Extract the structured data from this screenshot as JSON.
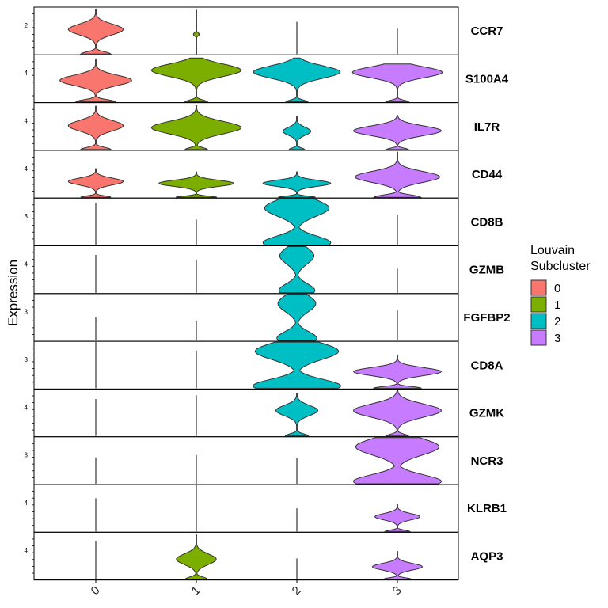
{
  "chart_data": {
    "type": "violin",
    "ylabel": "Expression",
    "categories": [
      "0",
      "1",
      "2",
      "3"
    ],
    "legend": {
      "title_lines": [
        "Louvain",
        "Subcluster"
      ],
      "entries": [
        {
          "label": "0",
          "color": "#F8766D"
        },
        {
          "label": "1",
          "color": "#7CAE00"
        },
        {
          "label": "2",
          "color": "#00BFC4"
        },
        {
          "label": "3",
          "color": "#C77CFF"
        }
      ],
      "placement": "right"
    },
    "panels": [
      {
        "gene": "CCR7",
        "ytick": "2",
        "clusters": [
          {
            "shape": "bulb",
            "width": 0.55,
            "center": 0.55,
            "top": 0.97
          },
          {
            "shape": "spike",
            "width": 0.06,
            "center": 0.45,
            "top": 0.95
          },
          {
            "shape": "line",
            "top": 0.7
          },
          {
            "shape": "line",
            "top": 0.55
          }
        ]
      },
      {
        "gene": "S100A4",
        "ytick": "4",
        "clusters": [
          {
            "shape": "bulb",
            "width": 0.72,
            "center": 0.5,
            "top": 0.93
          },
          {
            "shape": "wide",
            "width": 0.9,
            "center": 0.72,
            "top": 0.95
          },
          {
            "shape": "wide",
            "width": 0.87,
            "center": 0.68,
            "top": 0.95
          },
          {
            "shape": "wide",
            "width": 0.9,
            "center": 0.78,
            "top": 0.82
          }
        ]
      },
      {
        "gene": "IL7R",
        "ytick": "4",
        "clusters": [
          {
            "shape": "bulb",
            "width": 0.55,
            "center": 0.55,
            "top": 0.94
          },
          {
            "shape": "wide",
            "width": 0.9,
            "center": 0.5,
            "top": 0.95
          },
          {
            "shape": "bulb",
            "width": 0.28,
            "center": 0.55,
            "top": 0.72
          },
          {
            "shape": "wide",
            "width": 0.88,
            "center": 0.55,
            "top": 0.74
          }
        ]
      },
      {
        "gene": "CD44",
        "ytick": "4",
        "clusters": [
          {
            "shape": "bulb",
            "width": 0.55,
            "center": 0.55,
            "top": 0.62
          },
          {
            "shape": "bulb",
            "width": 0.75,
            "center": 0.55,
            "top": 0.55
          },
          {
            "shape": "bulb",
            "width": 0.68,
            "center": 0.55,
            "top": 0.55
          },
          {
            "shape": "bulb",
            "width": 0.85,
            "center": 0.45,
            "top": 0.98
          }
        ]
      },
      {
        "gene": "CD8B",
        "ytick": "3",
        "clusters": [
          {
            "shape": "line",
            "top": 0.92
          },
          {
            "shape": "line",
            "top": 0.55
          },
          {
            "shape": "fullbulb",
            "width": 0.68,
            "center": 0.5,
            "top": 1.0
          },
          {
            "shape": "line",
            "top": 0.65
          }
        ]
      },
      {
        "gene": "GZMB",
        "ytick": "4",
        "clusters": [
          {
            "shape": "line",
            "top": 0.82
          },
          {
            "shape": "line",
            "top": 0.72
          },
          {
            "shape": "fullbulb",
            "width": 0.36,
            "center": 0.55,
            "top": 1.0
          },
          {
            "shape": "line",
            "top": 0.52
          }
        ]
      },
      {
        "gene": "FGFBP2",
        "ytick": "3",
        "clusters": [
          {
            "shape": "line",
            "top": 0.5
          },
          {
            "shape": "line",
            "top": 0.43
          },
          {
            "shape": "fullbulb",
            "width": 0.4,
            "center": 0.55,
            "top": 1.0
          },
          {
            "shape": "line",
            "top": 0.65
          }
        ]
      },
      {
        "gene": "CD8A",
        "ytick": "3",
        "clusters": [
          {
            "shape": "line",
            "top": 1.0
          },
          {
            "shape": "line",
            "top": 0.82
          },
          {
            "shape": "fullbulb",
            "width": 0.88,
            "center": 0.55,
            "top": 1.0
          },
          {
            "shape": "bulb",
            "width": 0.88,
            "center": 0.5,
            "top": 0.72
          }
        ]
      },
      {
        "gene": "GZMK",
        "ytick": "4",
        "clusters": [
          {
            "shape": "line",
            "top": 0.8
          },
          {
            "shape": "line",
            "top": 0.88
          },
          {
            "shape": "bulb",
            "width": 0.42,
            "center": 0.6,
            "top": 0.92
          },
          {
            "shape": "wide",
            "width": 0.88,
            "center": 0.55,
            "top": 1.0
          }
        ]
      },
      {
        "gene": "NCR3",
        "ytick": "3",
        "clusters": [
          {
            "shape": "line",
            "top": 0.57
          },
          {
            "shape": "line",
            "top": 0.62
          },
          {
            "shape": "line",
            "top": 0.55
          },
          {
            "shape": "fullbulb",
            "width": 0.88,
            "center": 0.5,
            "top": 1.0
          }
        ]
      },
      {
        "gene": "KLRB1",
        "ytick": "4",
        "clusters": [
          {
            "shape": "line",
            "top": 0.72
          },
          {
            "shape": "line",
            "top": 1.0
          },
          {
            "shape": "line",
            "top": 0.5
          },
          {
            "shape": "bulb",
            "width": 0.45,
            "center": 0.55,
            "top": 0.58
          }
        ]
      },
      {
        "gene": "AQP3",
        "ytick": "4",
        "clusters": [
          {
            "shape": "line",
            "top": 0.82
          },
          {
            "shape": "bulb",
            "width": 0.4,
            "center": 0.45,
            "top": 0.96
          },
          {
            "shape": "line",
            "top": 0.45
          },
          {
            "shape": "bulb",
            "width": 0.5,
            "center": 0.45,
            "top": 0.6
          }
        ]
      }
    ]
  }
}
